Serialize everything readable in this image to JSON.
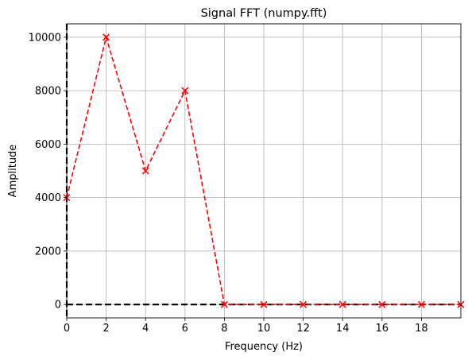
{
  "chart_data": {
    "type": "line",
    "title": "Signal FFT (numpy.fft)",
    "xlabel": "Frequency (Hz)",
    "ylabel": "Amplitude",
    "xlim": [
      0,
      20
    ],
    "ylim": [
      -500,
      10500
    ],
    "xticks": [
      0,
      2,
      4,
      6,
      8,
      10,
      12,
      14,
      16,
      18
    ],
    "yticks": [
      0,
      2000,
      4000,
      6000,
      8000,
      10000
    ],
    "xtick_labels": [
      "0",
      "2",
      "4",
      "6",
      "8",
      "10",
      "12",
      "14",
      "16",
      "18"
    ],
    "ytick_labels": [
      "0",
      "2000",
      "4000",
      "6000",
      "8000",
      "10000"
    ],
    "grid": true,
    "series": [
      {
        "x": [
          0,
          2,
          4,
          6,
          8,
          10,
          12,
          14,
          16,
          18,
          20
        ],
        "y": [
          4000,
          10000,
          5000,
          8000,
          0,
          0,
          0,
          0,
          0,
          0,
          0
        ],
        "color": "#ff0000",
        "linestyle": "dashed",
        "marker": "x"
      }
    ],
    "reference_lines": [
      {
        "orientation": "horizontal",
        "value": 0,
        "color": "#000000",
        "linestyle": "dashed"
      },
      {
        "orientation": "vertical",
        "value": 0,
        "color": "#000000",
        "linestyle": "dashed"
      }
    ]
  }
}
